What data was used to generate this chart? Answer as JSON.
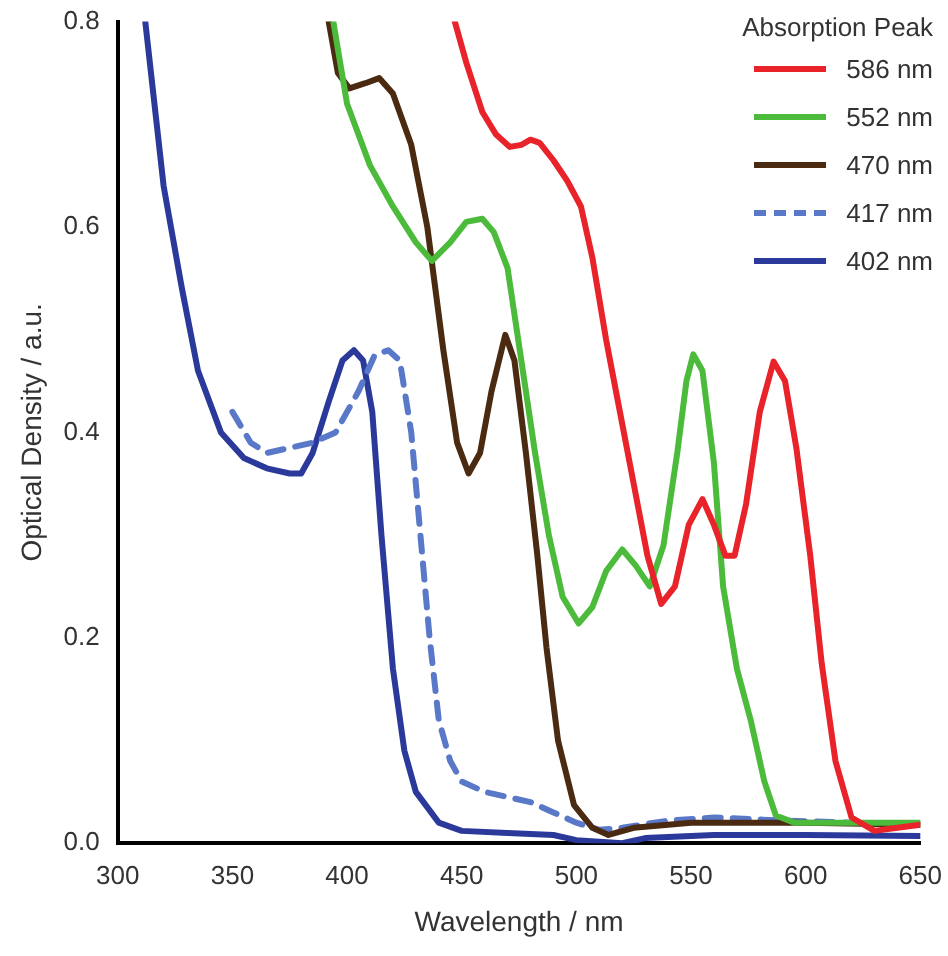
{
  "chart_data": {
    "type": "line",
    "xlabel": "Wavelength / nm",
    "ylabel": "Optical Density / a.u.",
    "legend_title": "Absorption Peak",
    "legend": "top right",
    "grid": false,
    "marker": "none",
    "xlim": [
      300,
      650
    ],
    "xticks": [
      300,
      350,
      400,
      450,
      500,
      550,
      600,
      650
    ],
    "ylim": [
      0,
      0.8
    ],
    "yticks": [
      {
        "value": 0,
        "label": "0.0"
      },
      0.2,
      0.4,
      0.6,
      0.8
    ],
    "series": [
      {
        "name": "586 nm",
        "color": "#e8232a",
        "line_style": "solid",
        "x": [
          447,
          452,
          459,
          465,
          471,
          476,
          480,
          484,
          490,
          496,
          502,
          507,
          513,
          519,
          525,
          531,
          537,
          543,
          549,
          555,
          560,
          565,
          569,
          574,
          580,
          586,
          591,
          596,
          602,
          607,
          613,
          620,
          630,
          640,
          650
        ],
        "values": [
          0.8,
          0.76,
          0.712,
          0.69,
          0.678,
          0.68,
          0.685,
          0.682,
          0.665,
          0.645,
          0.62,
          0.57,
          0.49,
          0.42,
          0.35,
          0.28,
          0.233,
          0.25,
          0.31,
          0.335,
          0.31,
          0.28,
          0.28,
          0.33,
          0.42,
          0.469,
          0.45,
          0.384,
          0.28,
          0.175,
          0.08,
          0.025,
          0.012,
          0.015,
          0.018
        ]
      },
      {
        "name": "552 nm",
        "color": "#4cbb3c",
        "line_style": "solid",
        "x": [
          394,
          400,
          410,
          420,
          430,
          437,
          445,
          452,
          459,
          464,
          470,
          476,
          482,
          488,
          494,
          501,
          507,
          513,
          520,
          526,
          532,
          538,
          544,
          548,
          551,
          555,
          560,
          564,
          570,
          576,
          582,
          587,
          595,
          620,
          650
        ],
        "values": [
          0.8,
          0.72,
          0.66,
          0.62,
          0.585,
          0.567,
          0.585,
          0.605,
          0.608,
          0.595,
          0.56,
          0.47,
          0.38,
          0.3,
          0.24,
          0.214,
          0.23,
          0.265,
          0.286,
          0.27,
          0.25,
          0.29,
          0.38,
          0.45,
          0.476,
          0.46,
          0.37,
          0.25,
          0.17,
          0.12,
          0.06,
          0.027,
          0.02,
          0.02,
          0.02
        ]
      },
      {
        "name": "470 nm",
        "color": "#4a2a10",
        "line_style": "solid",
        "x": [
          392,
          396,
          401,
          408,
          414,
          420,
          428,
          435,
          442,
          448,
          453,
          458,
          463,
          469,
          473,
          478,
          483,
          487,
          492,
          499,
          507,
          514,
          525,
          550,
          600,
          650
        ],
        "values": [
          0.8,
          0.75,
          0.735,
          0.74,
          0.745,
          0.73,
          0.68,
          0.6,
          0.48,
          0.39,
          0.36,
          0.38,
          0.44,
          0.495,
          0.47,
          0.38,
          0.28,
          0.19,
          0.1,
          0.037,
          0.015,
          0.008,
          0.015,
          0.02,
          0.02,
          0.018
        ]
      },
      {
        "name": "417 nm",
        "color": "#5a78c8",
        "line_style": "dashed",
        "x": [
          350,
          358,
          365,
          375,
          385,
          395,
          405,
          412,
          418,
          423,
          428,
          432,
          436,
          440,
          445,
          450,
          460,
          470,
          480,
          490,
          500,
          510,
          520,
          540,
          560,
          590,
          620,
          650
        ],
        "values": [
          0.42,
          0.39,
          0.38,
          0.385,
          0.39,
          0.4,
          0.44,
          0.475,
          0.48,
          0.47,
          0.4,
          0.3,
          0.2,
          0.12,
          0.08,
          0.06,
          0.05,
          0.045,
          0.04,
          0.03,
          0.02,
          0.013,
          0.015,
          0.022,
          0.025,
          0.022,
          0.02,
          0.018
        ]
      },
      {
        "name": "402 nm",
        "color": "#2b3a9a",
        "line_style": "solid",
        "x": [
          312,
          320,
          328,
          335,
          345,
          355,
          365,
          375,
          380,
          385,
          392,
          398,
          403,
          407,
          411,
          415,
          420,
          425,
          430,
          440,
          450,
          470,
          490,
          500,
          520,
          530,
          560,
          600,
          650
        ],
        "values": [
          0.8,
          0.64,
          0.54,
          0.46,
          0.4,
          0.375,
          0.365,
          0.36,
          0.36,
          0.38,
          0.43,
          0.47,
          0.48,
          0.47,
          0.42,
          0.3,
          0.17,
          0.09,
          0.05,
          0.02,
          0.012,
          0.01,
          0.008,
          0.003,
          0,
          0.005,
          0.008,
          0.008,
          0.007
        ]
      }
    ]
  }
}
